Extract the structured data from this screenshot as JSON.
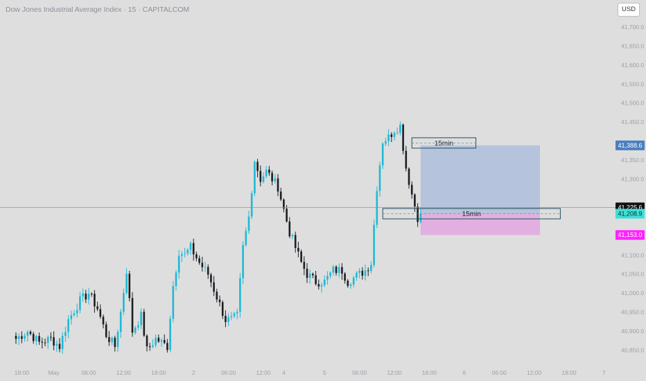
{
  "header": {
    "title": "Dow Jones Industrial Average Index · 15 · CAPITALCOM",
    "currency_button": "USD"
  },
  "colors": {
    "background": "#dedede",
    "candle": "#1fb9d4",
    "candle_dark": "#1b1f24",
    "profit_zone": "#aebfdc",
    "loss_zone": "#e2a8e0",
    "box_border": "#1f4e5a",
    "tag_target": "#4a7fc1",
    "tag_current": "#111111",
    "tag_entry": "#3de0d8",
    "tag_stop": "#ff22ff"
  },
  "chart_data": {
    "type": "candlestick",
    "title": "Dow Jones Industrial Average Index · 15 · CAPITALCOM",
    "ylim": [
      40820,
      41760
    ],
    "y_ticks": [
      "41,700.0",
      "41,650.0",
      "41,600.0",
      "41,550.0",
      "41,500.0",
      "41,450.0",
      "41,350.0",
      "41,300.0",
      "41,100.0",
      "41,050.0",
      "41,000.0",
      "40,950.0",
      "40,900.0",
      "40,850.0"
    ],
    "y_tick_values": [
      41700,
      41650,
      41600,
      41550,
      41500,
      41450,
      41350,
      41300,
      41100,
      41050,
      41000,
      40950,
      40900,
      40850
    ],
    "x_ticks": [
      {
        "label": "18:00",
        "bar": 2
      },
      {
        "label": "May",
        "bar": 13
      },
      {
        "label": "06:00",
        "bar": 25
      },
      {
        "label": "12:00",
        "bar": 37
      },
      {
        "label": "18:00",
        "bar": 49
      },
      {
        "label": "2",
        "bar": 61
      },
      {
        "label": "06:00",
        "bar": 73
      },
      {
        "label": "12:00",
        "bar": 85
      },
      {
        "label": "4",
        "bar": 92
      },
      {
        "label": "5",
        "bar": 106
      },
      {
        "label": "06:00",
        "bar": 118
      },
      {
        "label": "12:00",
        "bar": 130
      },
      {
        "label": "18:00",
        "bar": 142
      },
      {
        "label": "6",
        "bar": 154
      },
      {
        "label": "06:00",
        "bar": 166
      },
      {
        "label": "12:00",
        "bar": 178
      },
      {
        "label": "18:00",
        "bar": 190
      },
      {
        "label": "7",
        "bar": 202
      }
    ],
    "anchors": [
      [
        0,
        40880
      ],
      [
        4,
        40900
      ],
      [
        8,
        40870
      ],
      [
        12,
        40880
      ],
      [
        15,
        40860
      ],
      [
        18,
        40930
      ],
      [
        22,
        40980
      ],
      [
        25,
        41000
      ],
      [
        28,
        40960
      ],
      [
        31,
        40890
      ],
      [
        34,
        40860
      ],
      [
        36,
        40950
      ],
      [
        38,
        41060
      ],
      [
        40,
        40900
      ],
      [
        43,
        40940
      ],
      [
        45,
        40850
      ],
      [
        48,
        40880
      ],
      [
        52,
        40860
      ],
      [
        54,
        41020
      ],
      [
        56,
        41110
      ],
      [
        58,
        41100
      ],
      [
        60,
        41120
      ],
      [
        63,
        41080
      ],
      [
        66,
        41050
      ],
      [
        69,
        40990
      ],
      [
        72,
        40930
      ],
      [
        74,
        40930
      ],
      [
        76,
        40940
      ],
      [
        78,
        41120
      ],
      [
        80,
        41200
      ],
      [
        82,
        41350
      ],
      [
        84,
        41300
      ],
      [
        86,
        41320
      ],
      [
        88,
        41300
      ],
      [
        90,
        41280
      ],
      [
        92,
        41220
      ],
      [
        94,
        41160
      ],
      [
        96,
        41120
      ],
      [
        98,
        41080
      ],
      [
        100,
        41050
      ],
      [
        103,
        41030
      ],
      [
        106,
        41030
      ],
      [
        109,
        41060
      ],
      [
        112,
        41060
      ],
      [
        114,
        41030
      ],
      [
        116,
        41040
      ],
      [
        118,
        41050
      ],
      [
        120,
        41060
      ],
      [
        122,
        41080
      ],
      [
        124,
        41280
      ],
      [
        126,
        41400
      ],
      [
        128,
        41410
      ],
      [
        130,
        41430
      ],
      [
        132,
        41440
      ],
      [
        134,
        41330
      ],
      [
        136,
        41260
      ],
      [
        138,
        41200
      ],
      [
        139,
        41209
      ]
    ],
    "target_price": 41388.6,
    "current_price": 41225.6,
    "entry_price": 41208.9,
    "stop_price": 41153.0,
    "price_tags": {
      "target": "41,388.6",
      "current": "41,225.6",
      "entry": "41,208.9",
      "stop": "41,153.0"
    },
    "annotations": [
      {
        "label": "15min",
        "price": 41395,
        "bar_start": 136,
        "bar_end": 158
      },
      {
        "label": "15min",
        "price": 41209,
        "bar_start": 126,
        "bar_end": 187
      }
    ],
    "position": {
      "bar_start": 139,
      "bar_end": 180
    }
  }
}
